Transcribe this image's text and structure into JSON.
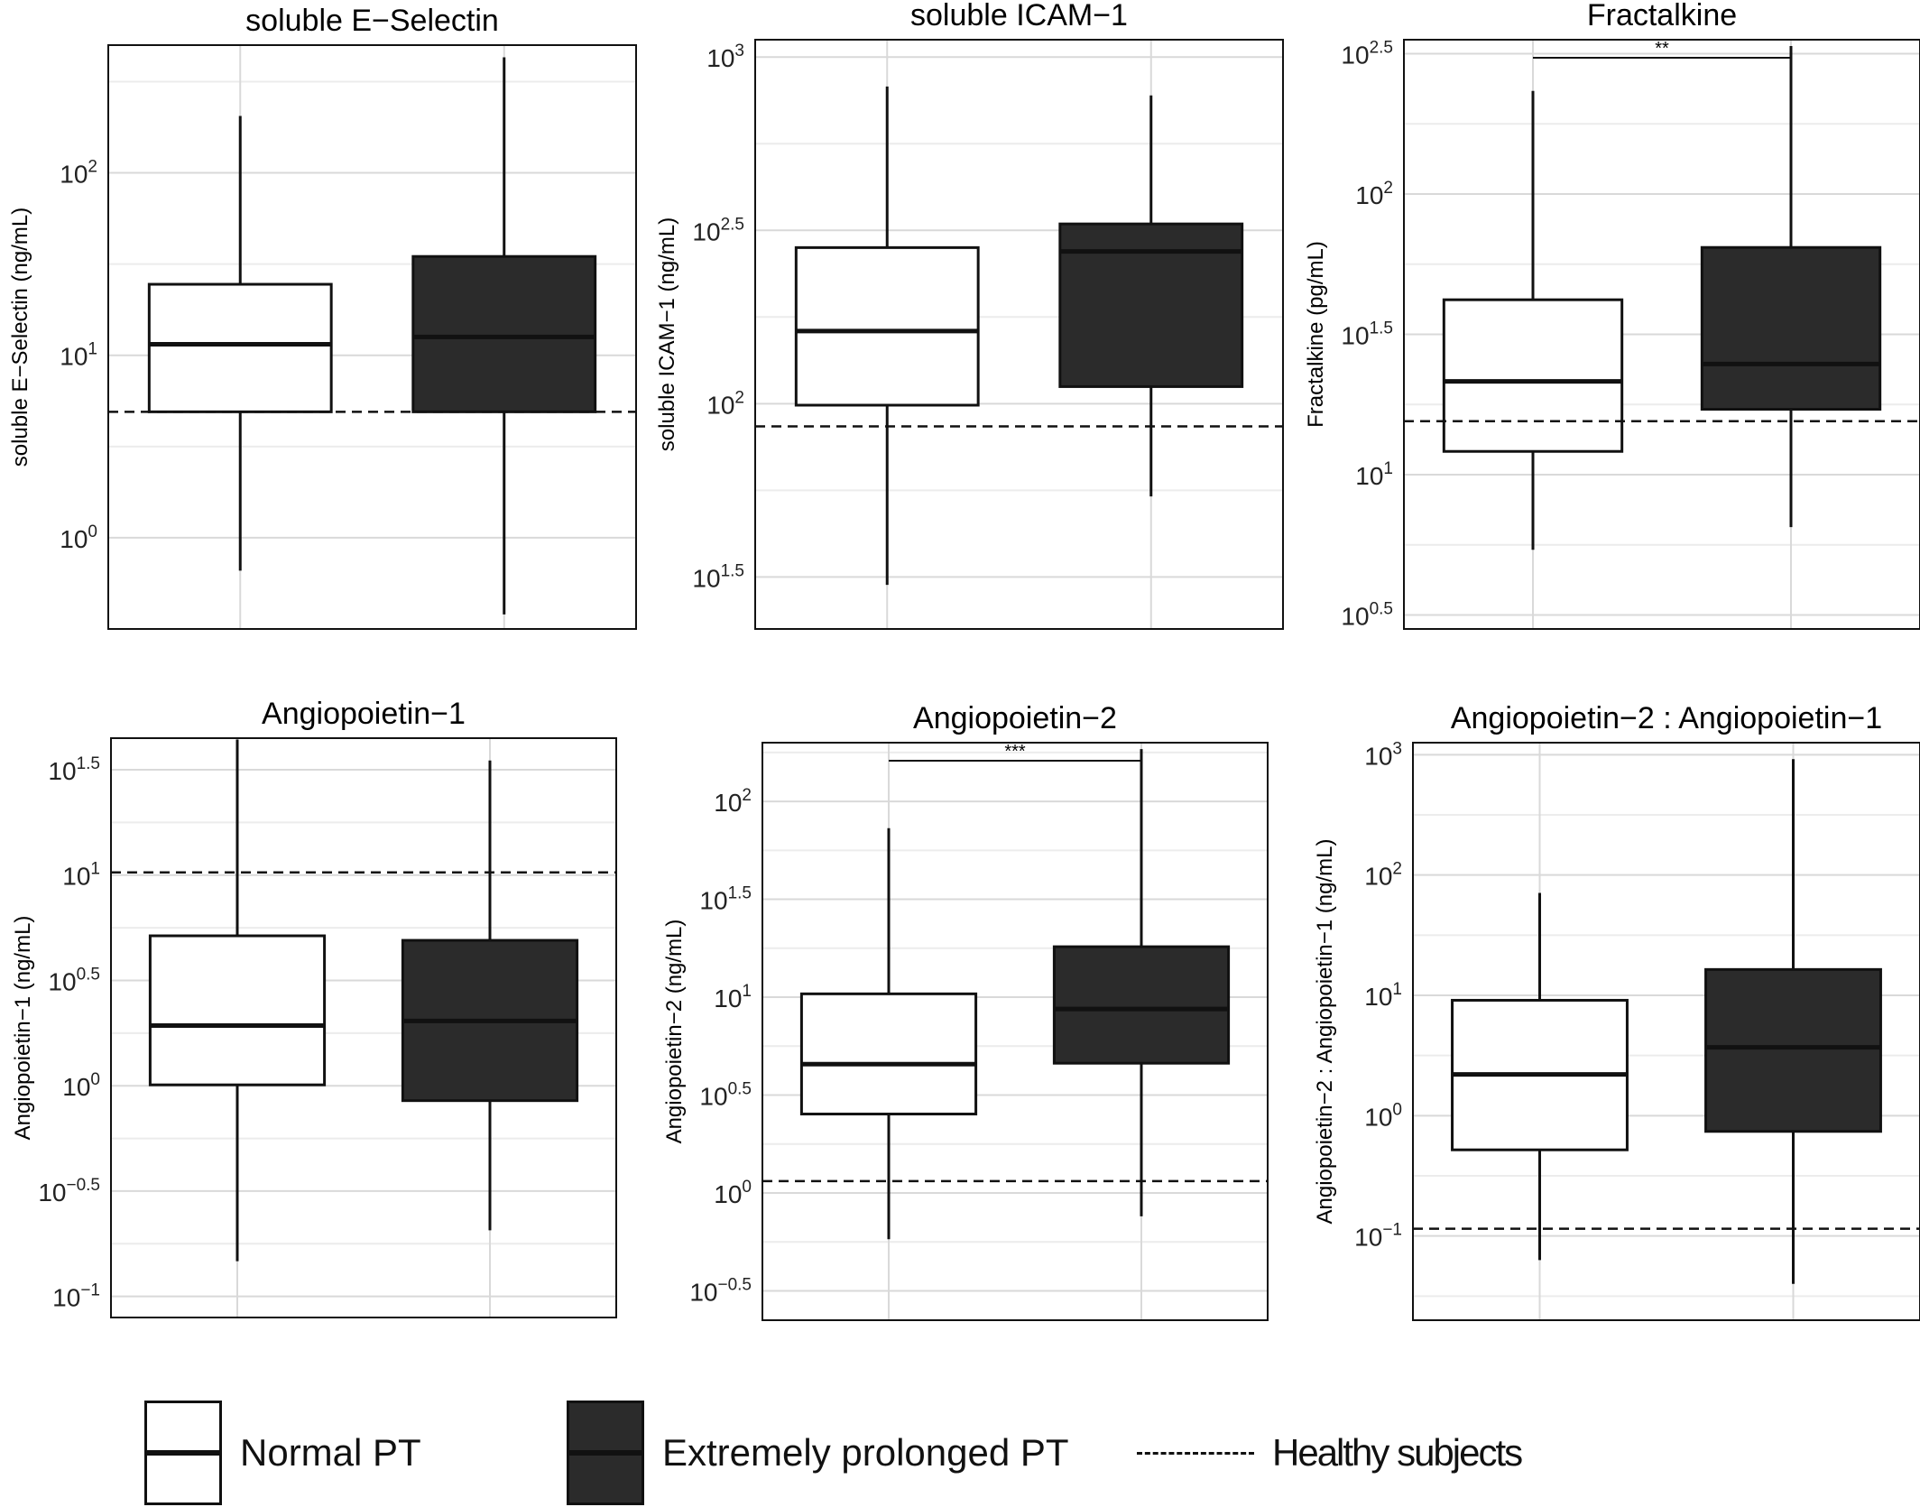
{
  "chart_data": [
    {
      "type": "box",
      "title": "soluble E−Selectin",
      "ylabel": "soluble E−Selectin (ng/mL)",
      "log10_range": [
        -0.5,
        2.7
      ],
      "ticks": [
        {
          "exp": 0,
          "label_base": "10",
          "label_exp": "0"
        },
        {
          "exp": 1,
          "label_base": "10",
          "label_exp": "1"
        },
        {
          "exp": 2,
          "label_base": "10",
          "label_exp": "2"
        }
      ],
      "categories": [
        "Normal PT",
        "Extremely prolonged PT"
      ],
      "boxes": [
        {
          "group": "Normal PT",
          "min": 0.66,
          "q1": 4.9,
          "median": 11.5,
          "q3": 24.5,
          "max": 205
        },
        {
          "group": "Extremely prolonged PT",
          "min": 0.38,
          "q1": 4.9,
          "median": 12.6,
          "q3": 34.8,
          "max": 430
        }
      ],
      "healthy_reference": 4.9,
      "significance": ""
    },
    {
      "type": "box",
      "title": "soluble ICAM−1",
      "ylabel": "soluble ICAM−1 (ng/mL)",
      "log10_range": [
        1.35,
        3.05
      ],
      "ticks": [
        {
          "exp": 1.5,
          "label_base": "10",
          "label_exp": "1.5"
        },
        {
          "exp": 2,
          "label_base": "10",
          "label_exp": "2"
        },
        {
          "exp": 2.5,
          "label_base": "10",
          "label_exp": "2.5"
        },
        {
          "exp": 3,
          "label_base": "10",
          "label_exp": "3"
        }
      ],
      "categories": [
        "Normal PT",
        "Extremely prolonged PT"
      ],
      "boxes": [
        {
          "group": "Normal PT",
          "min": 30,
          "q1": 99,
          "median": 162,
          "q3": 282,
          "max": 822
        },
        {
          "group": "Extremely prolonged PT",
          "min": 54,
          "q1": 112,
          "median": 275,
          "q3": 330,
          "max": 775
        }
      ],
      "healthy_reference": 86,
      "significance": ""
    },
    {
      "type": "box",
      "title": "Fractalkine",
      "ylabel": "Fractalkine (pg/mL)",
      "log10_range": [
        0.45,
        2.55
      ],
      "ticks": [
        {
          "exp": 0.5,
          "label_base": "10",
          "label_exp": "0.5"
        },
        {
          "exp": 1,
          "label_base": "10",
          "label_exp": "1"
        },
        {
          "exp": 1.5,
          "label_base": "10",
          "label_exp": "1.5"
        },
        {
          "exp": 2,
          "label_base": "10",
          "label_exp": "2"
        },
        {
          "exp": 2.5,
          "label_base": "10",
          "label_exp": "2.5"
        }
      ],
      "categories": [
        "Normal PT",
        "Extremely prolonged PT"
      ],
      "boxes": [
        {
          "group": "Normal PT",
          "min": 5.4,
          "q1": 12.1,
          "median": 21.5,
          "q3": 42,
          "max": 233
        },
        {
          "group": "Extremely prolonged PT",
          "min": 6.5,
          "q1": 17.1,
          "median": 24.8,
          "q3": 64.5,
          "max": 337
        }
      ],
      "healthy_reference": 15.5,
      "significance": "**"
    },
    {
      "type": "box",
      "title": "Angiopoietin−1",
      "ylabel": "Angiopoietin−1 (ng/mL)",
      "log10_range": [
        -1.1,
        1.65
      ],
      "ticks": [
        {
          "exp": -1,
          "label_base": "10",
          "label_exp": "−1"
        },
        {
          "exp": -0.5,
          "label_base": "10",
          "label_exp": "−0.5"
        },
        {
          "exp": 0,
          "label_base": "10",
          "label_exp": "0"
        },
        {
          "exp": 0.5,
          "label_base": "10",
          "label_exp": "0.5"
        },
        {
          "exp": 1,
          "label_base": "10",
          "label_exp": "1"
        },
        {
          "exp": 1.5,
          "label_base": "10",
          "label_exp": "1.5"
        }
      ],
      "categories": [
        "Normal PT",
        "Extremely prolonged PT"
      ],
      "boxes": [
        {
          "group": "Normal PT",
          "min": 0.147,
          "q1": 1.01,
          "median": 1.93,
          "q3": 5.15,
          "max": 44
        },
        {
          "group": "Extremely prolonged PT",
          "min": 0.206,
          "q1": 0.85,
          "median": 2.03,
          "q3": 4.9,
          "max": 35
        }
      ],
      "healthy_reference": 10.3,
      "significance": ""
    },
    {
      "type": "box",
      "title": "Angiopoietin−2",
      "ylabel": "Angiopoietin−2 (ng/mL)",
      "log10_range": [
        -0.65,
        2.3
      ],
      "ticks": [
        {
          "exp": -0.5,
          "label_base": "10",
          "label_exp": "−0.5"
        },
        {
          "exp": 0,
          "label_base": "10",
          "label_exp": "0"
        },
        {
          "exp": 0.5,
          "label_base": "10",
          "label_exp": "0.5"
        },
        {
          "exp": 1,
          "label_base": "10",
          "label_exp": "1"
        },
        {
          "exp": 1.5,
          "label_base": "10",
          "label_exp": "1.5"
        },
        {
          "exp": 2,
          "label_base": "10",
          "label_exp": "2"
        }
      ],
      "categories": [
        "Normal PT",
        "Extremely prolonged PT"
      ],
      "boxes": [
        {
          "group": "Normal PT",
          "min": 0.58,
          "q1": 2.53,
          "median": 4.55,
          "q3": 10.4,
          "max": 73
        },
        {
          "group": "Extremely prolonged PT",
          "min": 0.76,
          "q1": 4.6,
          "median": 8.7,
          "q3": 18.1,
          "max": 185
        }
      ],
      "healthy_reference": 1.15,
      "significance": "***"
    },
    {
      "type": "box",
      "title": "Angiopoietin−2 : Angiopoietin−1",
      "ylabel": "Angiopoietin−2 : Angiopoietin−1 (ng/mL)",
      "log10_range": [
        -1.7,
        3.1
      ],
      "ticks": [
        {
          "exp": -1,
          "label_base": "10",
          "label_exp": "−1"
        },
        {
          "exp": 0,
          "label_base": "10",
          "label_exp": "0"
        },
        {
          "exp": 1,
          "label_base": "10",
          "label_exp": "1"
        },
        {
          "exp": 2,
          "label_base": "10",
          "label_exp": "2"
        },
        {
          "exp": 3,
          "label_base": "10",
          "label_exp": "3"
        }
      ],
      "categories": [
        "Normal PT",
        "Extremely prolonged PT"
      ],
      "boxes": [
        {
          "group": "Normal PT",
          "min": 0.063,
          "q1": 0.52,
          "median": 2.2,
          "q3": 9.1,
          "max": 71
        },
        {
          "group": "Extremely prolonged PT",
          "min": 0.04,
          "q1": 0.74,
          "median": 3.7,
          "q3": 16.4,
          "max": 918
        }
      ],
      "healthy_reference": 0.115,
      "significance": ""
    }
  ],
  "legend": {
    "normal": "Normal PT",
    "prolonged": "Extremely prolonged PT",
    "healthy": "Healthy subjects"
  },
  "colors": {
    "normal_fill": "#ffffff",
    "prolonged_fill": "#2b2b2b",
    "stroke": "#111111",
    "grid_major": "#d9d9d9",
    "grid_minor": "#ececec"
  }
}
